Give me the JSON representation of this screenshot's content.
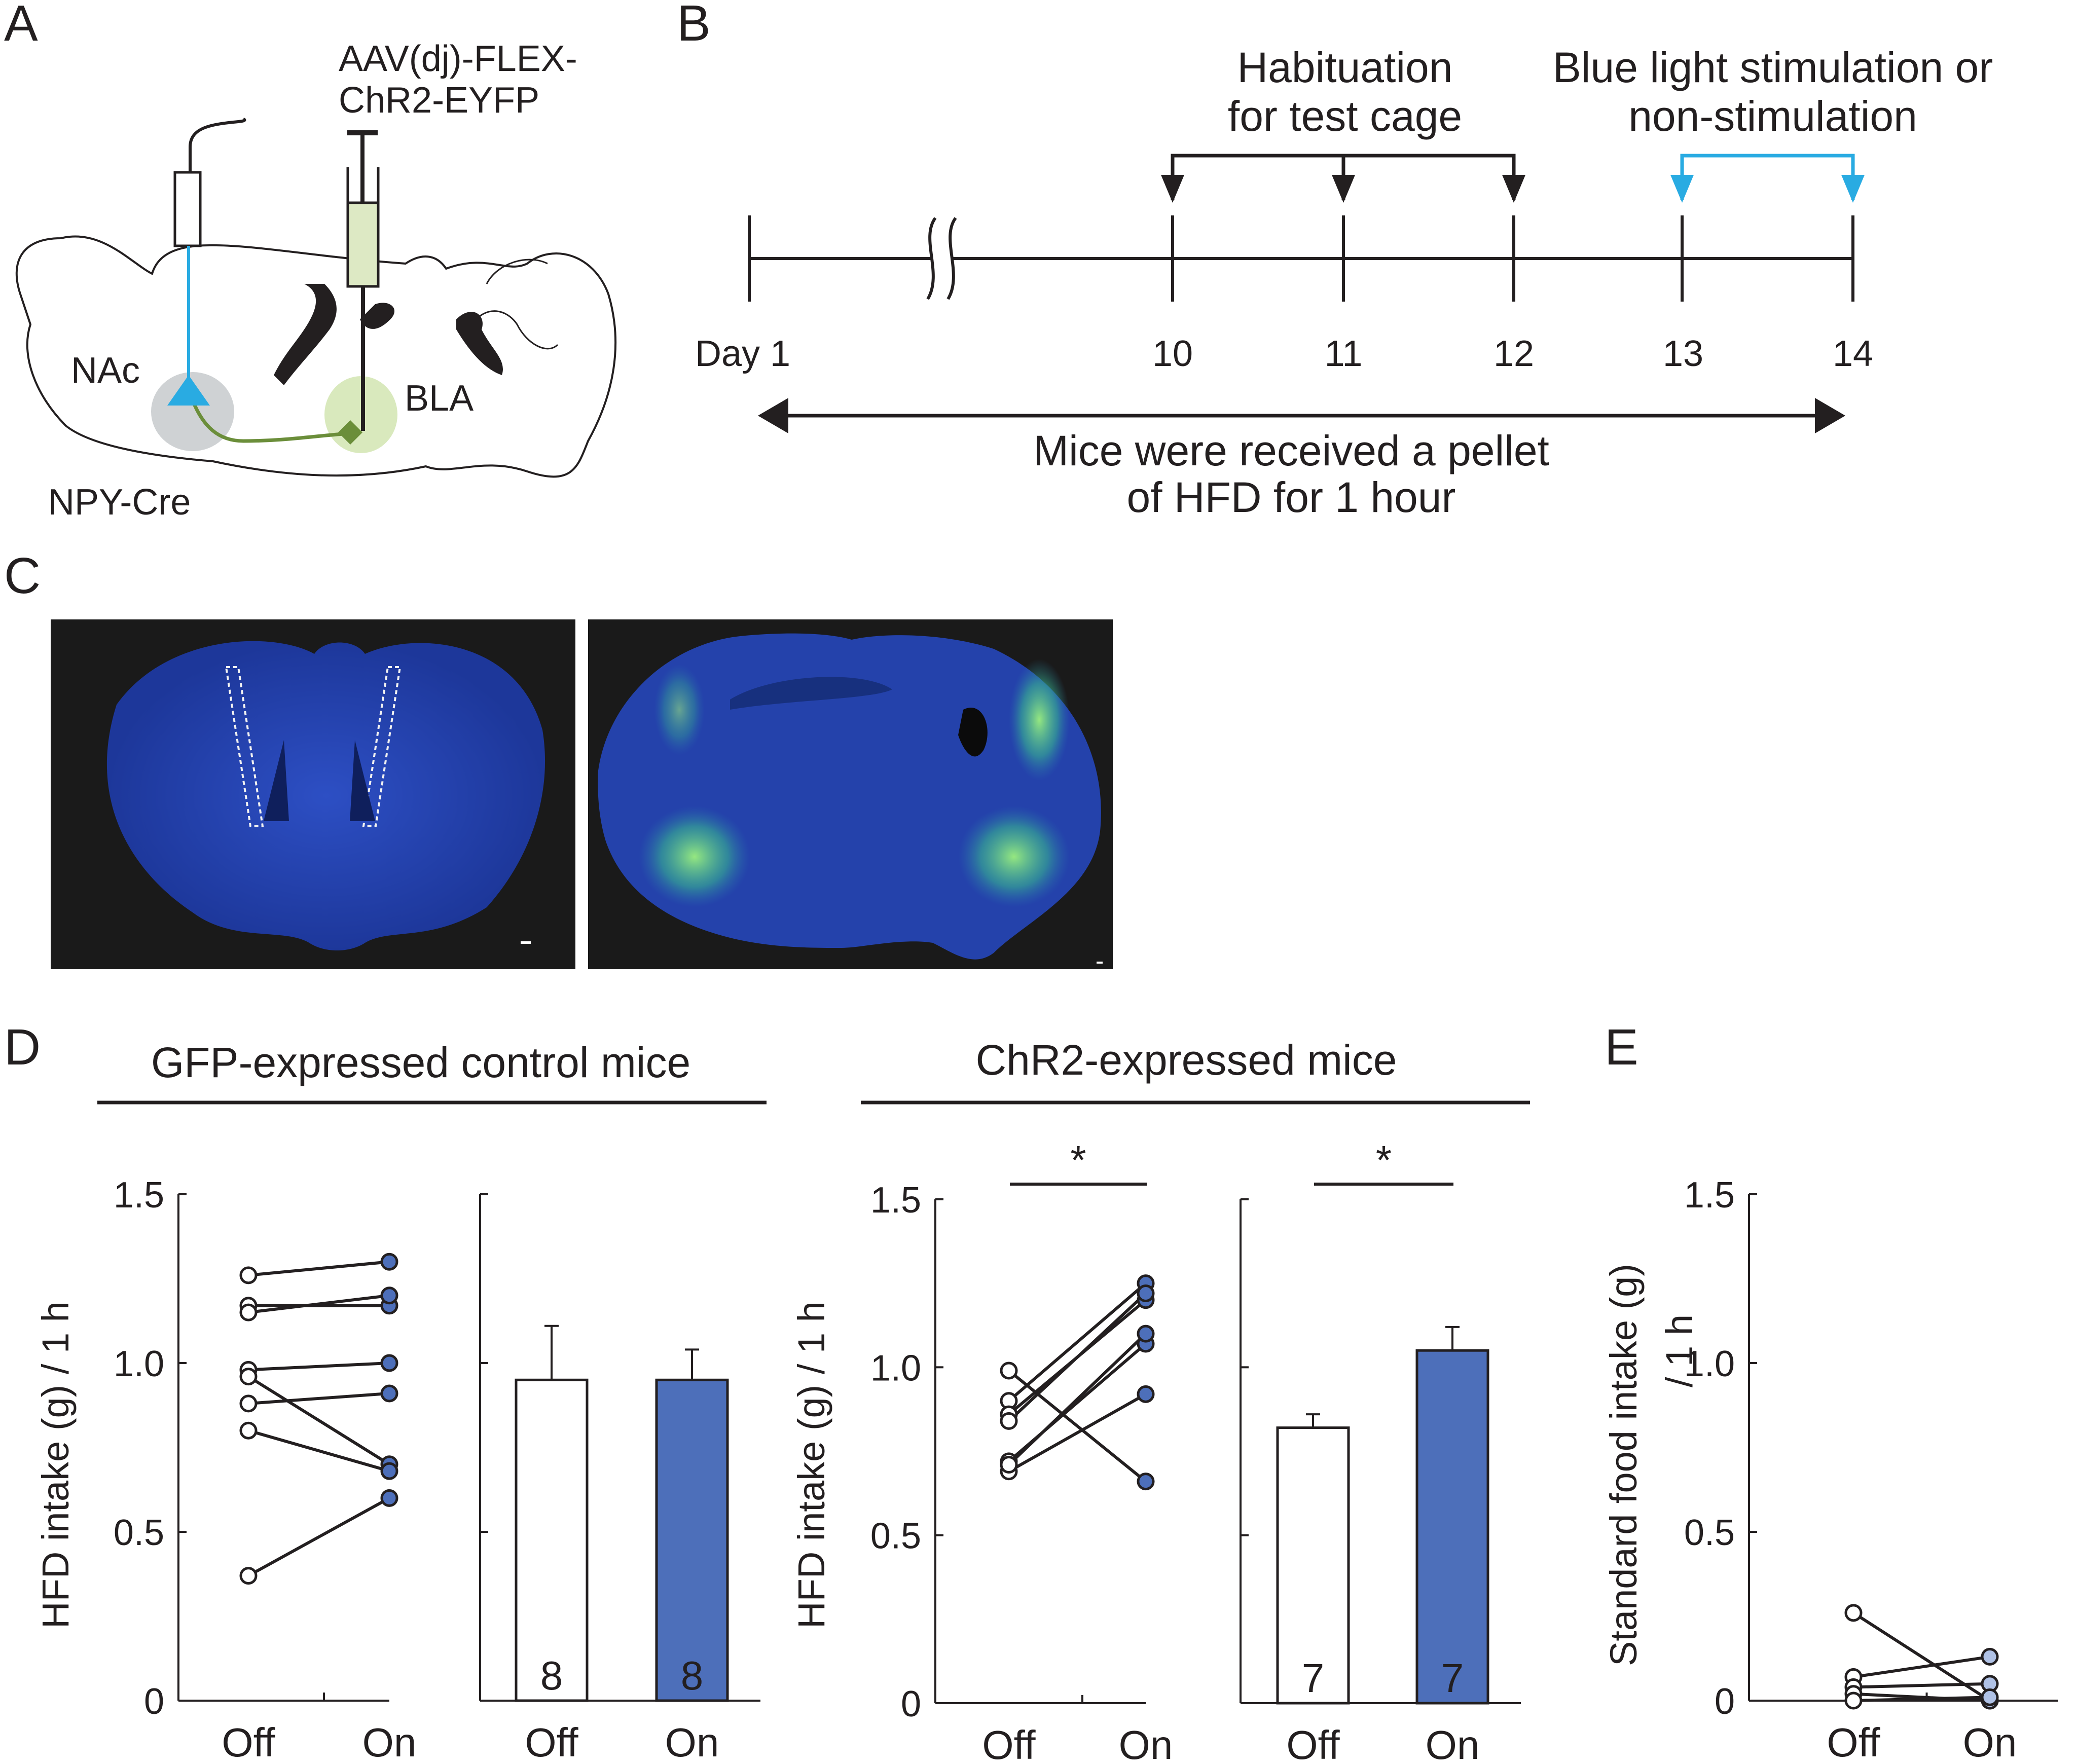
{
  "panels": {
    "A": "A",
    "B": "B",
    "C": "C",
    "D": "D",
    "E": "E"
  },
  "panel_a": {
    "virus_line1": "AAV(dj)-FLEX-",
    "virus_line2": "ChR2-EYFP",
    "region_nac": "NAc",
    "region_bla": "BLA",
    "mouse_line": "NPY-Cre",
    "colors": {
      "nac_neuron": "#29abe2",
      "bla_neuron": "#6b8e3a",
      "nac_halo": "#cfd2d4",
      "bla_halo": "#d9e9bd",
      "syringe": "#dde9c4"
    }
  },
  "panel_b": {
    "habituation_line1": "Habituation",
    "habituation_line2": "for test cage",
    "stim_line1": "Blue light stimulation or",
    "stim_line2": "non-stimulation",
    "days": [
      "Day 1",
      "10",
      "11",
      "12",
      "13",
      "14"
    ],
    "bottom_line1": "Mice were received a pellet",
    "bottom_line2": "of HFD for 1 hour",
    "colors": {
      "stim_arrow": "#29abe2"
    }
  },
  "panel_c": {
    "image_left": "coronal-section-optic-fiber-tracks",
    "image_right": "coronal-section-chr2-eyfp-expression",
    "colors": {
      "background": "#1a1a1a",
      "tissue": "#1f3da6",
      "eyfp": "#7be36b"
    }
  },
  "panel_d": {
    "group1_title": "GFP-expressed control mice",
    "group2_title": "ChR2-expressed mice",
    "ylabel": "HFD intake (g) / 1 h",
    "yticks": [
      "0",
      "0.5",
      "1.0",
      "1.5"
    ],
    "cats": [
      "Off",
      "On"
    ],
    "sig": "*",
    "n_gfp": "8",
    "n_chr2": "7"
  },
  "panel_e": {
    "ylabel_line1": "Standard food intake (g)",
    "ylabel_line2": "/ 1 h",
    "yticks": [
      "0",
      "0.5",
      "1.0",
      "1.5"
    ],
    "cats": [
      "Off",
      "On"
    ]
  },
  "chart_data": [
    {
      "type": "scatter",
      "title": "GFP-expressed control mice",
      "ylabel": "HFD intake (g) / 1 h",
      "categories": [
        "Off",
        "On"
      ],
      "ylim": [
        0,
        1.5
      ],
      "pairs": [
        [
          1.26,
          1.3
        ],
        [
          1.17,
          1.17
        ],
        [
          1.15,
          1.2
        ],
        [
          0.98,
          1.0
        ],
        [
          0.96,
          0.7
        ],
        [
          0.88,
          0.91
        ],
        [
          0.8,
          0.68
        ],
        [
          0.37,
          0.6
        ]
      ]
    },
    {
      "type": "bar",
      "title": "GFP-expressed control mice",
      "ylabel": "HFD intake (g) / 1 h",
      "categories": [
        "Off",
        "On"
      ],
      "values": [
        0.95,
        0.95
      ],
      "errors": [
        0.16,
        0.09
      ],
      "n": [
        8,
        8
      ],
      "ylim": [
        0,
        1.5
      ]
    },
    {
      "type": "scatter",
      "title": "ChR2-expressed mice",
      "ylabel": "HFD intake (g) / 1 h",
      "categories": [
        "Off",
        "On"
      ],
      "ylim": [
        0,
        1.5
      ],
      "pairs": [
        [
          0.99,
          0.66
        ],
        [
          0.9,
          1.25
        ],
        [
          0.86,
          1.2
        ],
        [
          0.84,
          1.22
        ],
        [
          0.72,
          1.07
        ],
        [
          0.69,
          0.92
        ],
        [
          0.71,
          1.1
        ]
      ],
      "significance": "*"
    },
    {
      "type": "bar",
      "title": "ChR2-expressed mice",
      "ylabel": "HFD intake (g) / 1 h",
      "categories": [
        "Off",
        "On"
      ],
      "values": [
        0.82,
        1.05
      ],
      "errors": [
        0.04,
        0.07
      ],
      "n": [
        7,
        7
      ],
      "ylim": [
        0,
        1.5
      ],
      "significance": "*"
    },
    {
      "type": "scatter",
      "title": "",
      "ylabel": "Standard food intake (g) / 1 h",
      "categories": [
        "Off",
        "On"
      ],
      "ylim": [
        0,
        1.5
      ],
      "pairs": [
        [
          0.26,
          0.0
        ],
        [
          0.07,
          0.13
        ],
        [
          0.04,
          0.05
        ],
        [
          0.02,
          0.0
        ],
        [
          0.0,
          0.01
        ]
      ]
    }
  ],
  "colors": {
    "on_fill": "#4d6fba",
    "off_fill": "#ffffff",
    "ink": "#231f20"
  }
}
